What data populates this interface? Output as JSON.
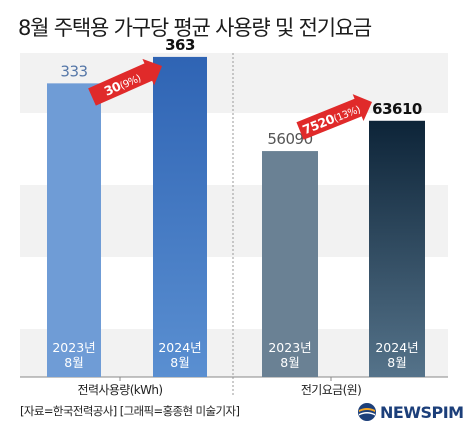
{
  "title": "8월 주택용 가구당 평균 사용량 및 전기요금",
  "source": "[자료=한국전력공사] [그래픽=홍종현 미술기자]",
  "logo": {
    "text": "NEWSPIM",
    "icon": "newspim-globe-icon"
  },
  "colors": {
    "band": "#f2f2f2",
    "usage_top": "#2f64b4",
    "usage_bottom": "#5a8fd1",
    "usage_2023": "#6f9cd6",
    "fee_top": "#0d2438",
    "fee_bottom": "#55738a",
    "fee_2023": "#6a8194",
    "arrow": "#e02a2a"
  },
  "chart_data": [
    {
      "type": "bar",
      "xlabel": "전력사용량(kWh)",
      "categories": [
        [
          "2023년",
          "8월"
        ],
        [
          "2024년",
          "8월"
        ]
      ],
      "values": [
        333,
        363
      ],
      "value_labels": [
        "333",
        "363"
      ],
      "annotation": {
        "main": "30",
        "sub": "(9%)"
      }
    },
    {
      "type": "bar",
      "xlabel": "전기요금(원)",
      "categories": [
        [
          "2023년",
          "8월"
        ],
        [
          "2024년",
          "8월"
        ]
      ],
      "values": [
        56090,
        63610
      ],
      "value_labels": [
        "56090",
        "63610"
      ],
      "annotation": {
        "main": "7520",
        "sub": "(13%)"
      }
    }
  ]
}
